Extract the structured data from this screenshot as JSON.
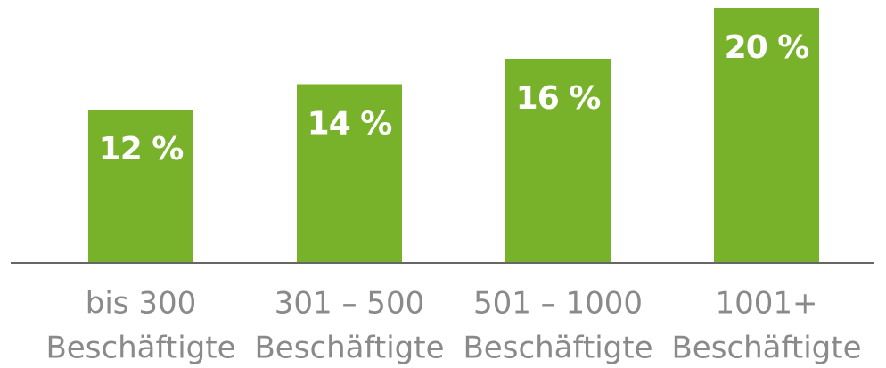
{
  "chart_data": {
    "type": "bar",
    "categories": [
      [
        "bis 300",
        "Beschäftigte"
      ],
      [
        "301 – 500",
        "Beschäftigte"
      ],
      [
        "501 – 1000",
        "Beschäftigte"
      ],
      [
        "1001+",
        "Beschäftigte"
      ]
    ],
    "values": [
      12,
      14,
      16,
      20
    ],
    "value_labels": [
      "12 %",
      "14 %",
      "16 %",
      "20 %"
    ],
    "color": "#77b22a",
    "ylim": [
      0,
      20
    ]
  }
}
